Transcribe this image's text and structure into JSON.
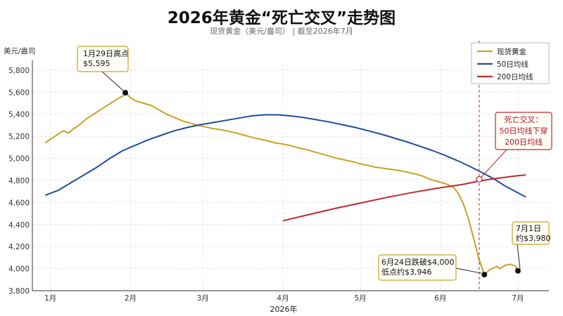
{
  "title": "2026年黄金“死亡交叉”走势图",
  "subtitle": "现货黄金（美元/盎司） | 截至2026年7月",
  "chart_data": {
    "type": "line",
    "title": "2026年黄金“死亡交叉”走势图",
    "subtitle": "现货黄金（美元/盎司） | 截至2026年7月",
    "xlabel": "2026年",
    "ylabel": "美元/盎司",
    "x_ticks": [
      {
        "day": 0,
        "label": "1月"
      },
      {
        "day": 31,
        "label": "2月"
      },
      {
        "day": 59,
        "label": "3月"
      },
      {
        "day": 90,
        "label": "4月"
      },
      {
        "day": 120,
        "label": "5月"
      },
      {
        "day": 151,
        "label": "6月"
      },
      {
        "day": 181,
        "label": "7月"
      }
    ],
    "xlim": [
      -7,
      193
    ],
    "ylim": [
      3800,
      5850
    ],
    "y_ticks": [
      3800,
      4000,
      4200,
      4400,
      4600,
      4800,
      5000,
      5200,
      5400,
      5600,
      5800
    ],
    "y_tick_labels": [
      "3,800",
      "4,000",
      "4,200",
      "4,400",
      "4,600",
      "4,800",
      "5,000",
      "5,200",
      "5,400",
      "5,600",
      "5,800"
    ],
    "grid": true,
    "legend_position": "top-right",
    "series": [
      {
        "name": "现货黄金",
        "color": "#C9A227",
        "x": [
          -2,
          1,
          3,
          5,
          7,
          9,
          11,
          14,
          16,
          18,
          20,
          22,
          24,
          26,
          28,
          29,
          31,
          33,
          36,
          39,
          42,
          45,
          48,
          51,
          54,
          57,
          60,
          63,
          66,
          69,
          72,
          75,
          78,
          81,
          84,
          87,
          90,
          93,
          96,
          99,
          102,
          105,
          108,
          111,
          114,
          117,
          120,
          123,
          126,
          129,
          132,
          135,
          138,
          141,
          144,
          147,
          150,
          153,
          156,
          158,
          160,
          162,
          164,
          166,
          168,
          170,
          172,
          173,
          174,
          175,
          176,
          178,
          180,
          181
        ],
        "y": [
          5140,
          5190,
          5220,
          5250,
          5230,
          5270,
          5300,
          5360,
          5390,
          5420,
          5450,
          5480,
          5510,
          5540,
          5565,
          5595,
          5550,
          5520,
          5500,
          5480,
          5440,
          5400,
          5370,
          5340,
          5320,
          5300,
          5285,
          5270,
          5260,
          5245,
          5230,
          5210,
          5190,
          5175,
          5160,
          5140,
          5130,
          5115,
          5095,
          5080,
          5060,
          5040,
          5020,
          5000,
          4985,
          4970,
          4950,
          4935,
          4920,
          4910,
          4900,
          4890,
          4875,
          4860,
          4840,
          4810,
          4790,
          4770,
          4740,
          4680,
          4580,
          4440,
          4260,
          4080,
          3946,
          3990,
          4010,
          4020,
          4000,
          4015,
          4030,
          4040,
          4025,
          3980
        ]
      },
      {
        "name": "50日均线",
        "color": "#1F4E9E",
        "x": [
          -2,
          3,
          8,
          13,
          18,
          23,
          28,
          33,
          38,
          43,
          48,
          53,
          58,
          63,
          68,
          73,
          78,
          83,
          88,
          93,
          98,
          103,
          108,
          113,
          118,
          123,
          128,
          133,
          138,
          143,
          148,
          153,
          158,
          163,
          168,
          172,
          176,
          180,
          184
        ],
        "y": [
          4665,
          4710,
          4780,
          4850,
          4920,
          5000,
          5070,
          5120,
          5170,
          5210,
          5250,
          5280,
          5305,
          5325,
          5345,
          5365,
          5385,
          5395,
          5395,
          5385,
          5370,
          5350,
          5330,
          5305,
          5280,
          5250,
          5220,
          5185,
          5150,
          5110,
          5070,
          5025,
          4975,
          4920,
          4860,
          4810,
          4750,
          4700,
          4650
        ]
      },
      {
        "name": "200日均线",
        "color": "#C0282E",
        "x": [
          90,
          100,
          110,
          120,
          130,
          140,
          150,
          160,
          165,
          170,
          175,
          180,
          184
        ],
        "y": [
          4435,
          4490,
          4545,
          4595,
          4645,
          4690,
          4730,
          4765,
          4790,
          4810,
          4825,
          4840,
          4850
        ]
      }
    ],
    "annotations": [
      {
        "id": "peak",
        "lines": [
          "1月29日高点",
          "$5,595"
        ],
        "x": 29,
        "y": 5595
      },
      {
        "id": "low",
        "lines": [
          "6月24日跌破$4,000",
          "低点约$3,946"
        ],
        "x": 168,
        "y": 3946
      },
      {
        "id": "last",
        "lines": [
          "7月1日",
          "约$3,980"
        ],
        "x": 181,
        "y": 3980
      },
      {
        "id": "cross",
        "lines": [
          "死亡交叉：",
          "50日均线下穿",
          "200日均线"
        ],
        "x": 166,
        "y": 4810
      }
    ]
  }
}
